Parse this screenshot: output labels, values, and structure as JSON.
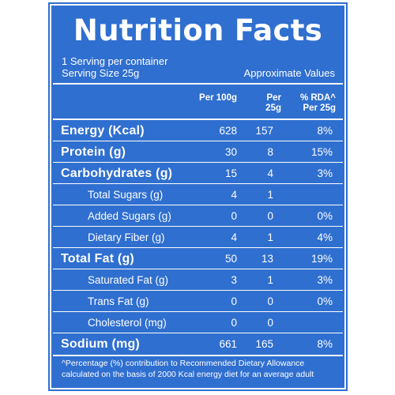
{
  "colors": {
    "panel_background": "#2f6fd0",
    "text": "#ffffff",
    "page_background": "#ffffff"
  },
  "title": "Nutrition Facts",
  "serving": {
    "per_container": "1 Serving per container",
    "size": "Serving Size 25g",
    "note": "Approximate Values"
  },
  "headers": {
    "per100": "Per 100g",
    "per25": "Per 25g",
    "rda": "% RDA^ Per 25g"
  },
  "rows": [
    {
      "name": "Energy (Kcal)",
      "per100": "628",
      "per25": "157",
      "rda": "8%"
    },
    {
      "name": "Protein (g)",
      "per100": "30",
      "per25": "8",
      "rda": "15%"
    },
    {
      "name": "Carbohydrates (g)",
      "per100": "15",
      "per25": "4",
      "rda": "3%"
    },
    {
      "name": "Total Sugars (g)",
      "per100": "4",
      "per25": "1",
      "rda": ""
    },
    {
      "name": "Added Sugars (g)",
      "per100": "0",
      "per25": "0",
      "rda": "0%"
    },
    {
      "name": "Dietary Fiber (g)",
      "per100": "4",
      "per25": "1",
      "rda": "4%"
    },
    {
      "name": "Total Fat (g)",
      "per100": "50",
      "per25": "13",
      "rda": "19%"
    },
    {
      "name": "Saturated Fat (g)",
      "per100": "3",
      "per25": "1",
      "rda": "3%"
    },
    {
      "name": "Trans Fat (g)",
      "per100": "0",
      "per25": "0",
      "rda": "0%"
    },
    {
      "name": "Cholesterol (mg)",
      "per100": "0",
      "per25": "0",
      "rda": ""
    },
    {
      "name": "Sodium (mg)",
      "per100": "661",
      "per25": "165",
      "rda": "8%"
    }
  ],
  "footnote": {
    "line1": "^Percentage (%) contribution to Recommended Dietary Allowance",
    "line2": "calculated on the basis of 2000 Kcal energy diet for an average adult"
  }
}
